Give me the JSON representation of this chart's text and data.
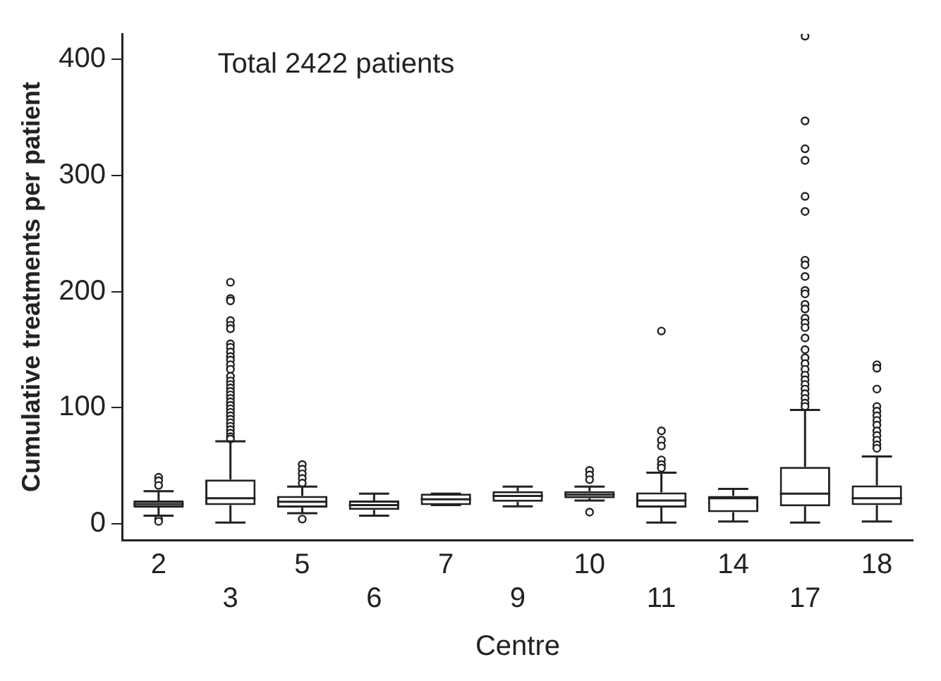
{
  "chart_data": {
    "type": "box",
    "title": "Total 2422 patients",
    "xlabel": "Centre",
    "ylabel": "Cumulative treatments per patient",
    "categories": [
      "2",
      "3",
      "5",
      "6",
      "7",
      "9",
      "10",
      "11",
      "14",
      "17",
      "18"
    ],
    "ylim": [
      -14,
      422
    ],
    "yticks": [
      0,
      100,
      200,
      300,
      400
    ],
    "grid": false,
    "legend": false,
    "boxes": [
      {
        "low": 7,
        "q1": 14,
        "median": 17,
        "q3": 20,
        "high": 28,
        "outliers": [
          40,
          37,
          33,
          4,
          2
        ]
      },
      {
        "low": 1,
        "q1": 16,
        "median": 22,
        "q3": 38,
        "high": 71,
        "outliers": [
          208,
          194,
          192,
          175,
          171,
          168,
          155,
          152,
          148,
          144,
          141,
          137,
          133,
          127,
          123,
          120,
          117,
          114,
          111,
          108,
          105,
          102,
          99,
          96,
          93,
          90,
          87,
          84,
          81,
          78,
          75,
          73
        ]
      },
      {
        "low": 9,
        "q1": 14,
        "median": 19,
        "q3": 24,
        "high": 32,
        "outliers": [
          51,
          47,
          43,
          39,
          35,
          4
        ]
      },
      {
        "low": 7,
        "q1": 12,
        "median": 16,
        "q3": 20,
        "high": 26
      },
      {
        "low": 16,
        "q1": 16,
        "median": 21,
        "q3": 26,
        "high": 26
      },
      {
        "low": 15,
        "q1": 19,
        "median": 24,
        "q3": 28,
        "high": 32
      },
      {
        "low": 20,
        "q1": 22,
        "median": 25,
        "q3": 28,
        "high": 32,
        "outliers": [
          46,
          42,
          38,
          10
        ]
      },
      {
        "low": 1,
        "q1": 14,
        "median": 20,
        "q3": 27,
        "high": 44,
        "outliers": [
          166,
          80,
          72,
          67,
          55,
          51,
          48
        ]
      },
      {
        "low": 2,
        "q1": 10,
        "median": 22,
        "q3": 24,
        "high": 30
      },
      {
        "low": 1,
        "q1": 15,
        "median": 26,
        "q3": 49,
        "high": 98,
        "outliers": [
          420,
          347,
          323,
          313,
          282,
          269,
          227,
          223,
          213,
          201,
          198,
          189,
          185,
          177,
          173,
          169,
          160,
          150,
          143,
          138,
          133,
          128,
          124,
          120,
          116,
          112,
          108,
          104,
          101
        ]
      },
      {
        "low": 2,
        "q1": 16,
        "median": 22,
        "q3": 33,
        "high": 58,
        "outliers": [
          137,
          134,
          116,
          101,
          97,
          93,
          89,
          85,
          80,
          76,
          72,
          68,
          65
        ]
      }
    ]
  }
}
